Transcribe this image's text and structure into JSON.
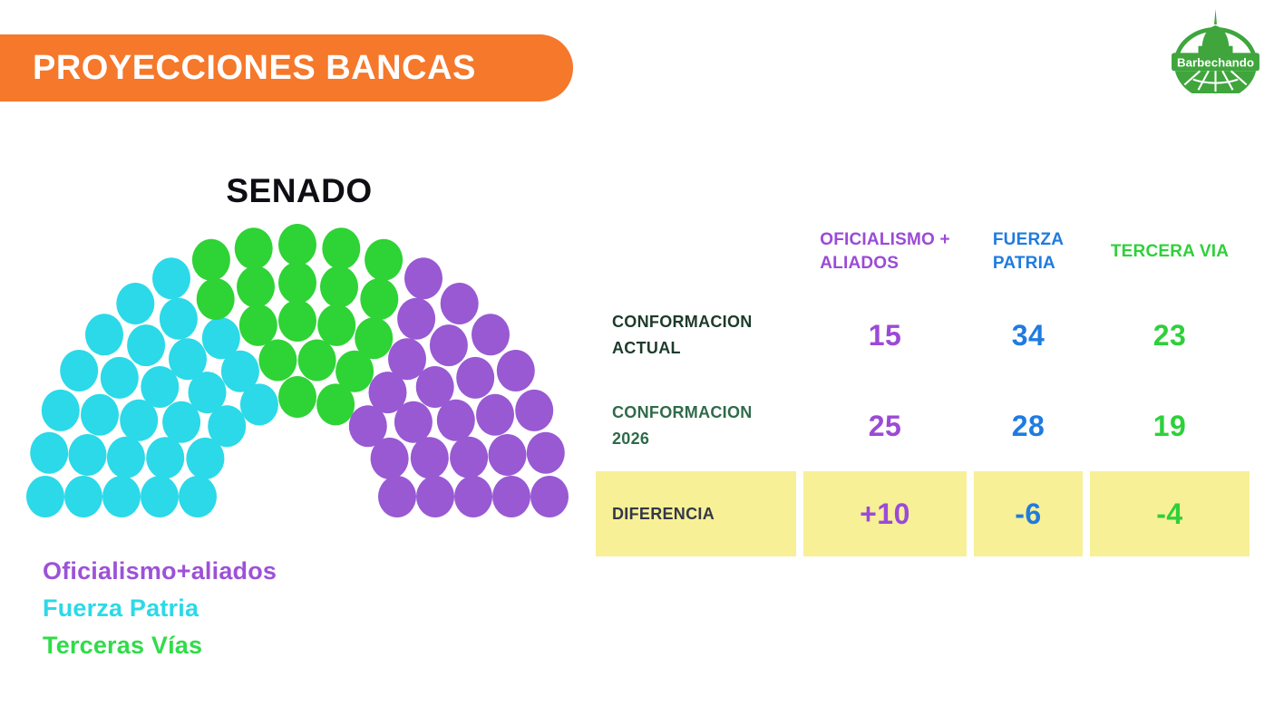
{
  "page": {
    "background": "#ffffff"
  },
  "header": {
    "title": "PROYECCIONES BANCAS",
    "banner_color": "#F5782B",
    "text_color": "#ffffff"
  },
  "logo": {
    "name": "Barbechando",
    "color": "#3FA53C"
  },
  "senate": {
    "title": "SENADO",
    "legend": [
      {
        "label": "Oficialismo+aliados",
        "color": "#9C52D8"
      },
      {
        "label": "Fuerza Patria",
        "color": "#2BD9E8"
      },
      {
        "label": "Terceras Vías",
        "color": "#30DC49"
      }
    ]
  },
  "chart_data": {
    "type": "parliament",
    "title": "SENADO",
    "total_seats": 72,
    "rows": [
      9,
      12,
      15,
      17,
      19
    ],
    "parties": [
      {
        "name": "Fuerza Patria",
        "seats": 28,
        "color": "#2BD9E8"
      },
      {
        "name": "Terceras Vías",
        "seats": 19,
        "color": "#2ED335"
      },
      {
        "name": "Oficialismo+aliados",
        "seats": 25,
        "color": "#9859D3"
      }
    ]
  },
  "table": {
    "columns": [
      {
        "line1": "OFICIALISMO +",
        "line2": "ALIADOS",
        "color": "#9B4AD6"
      },
      {
        "line1": "FUERZA",
        "line2": "PATRIA",
        "color": "#1F7BE0"
      },
      {
        "line1": "TERCERA VIA",
        "line2": "",
        "color": "#2FD03A"
      }
    ],
    "rows": [
      {
        "line1": "CONFORMACION",
        "line2": "ACTUAL",
        "label_color": "#1D3B2A",
        "values": [
          "15",
          "34",
          "23"
        ],
        "highlight": false
      },
      {
        "line1": "CONFORMACION",
        "line2": "2026",
        "label_color": "#2F6B4A",
        "values": [
          "25",
          "28",
          "19"
        ],
        "highlight": false
      },
      {
        "line1": "DIFERENCIA",
        "line2": "",
        "label_color": "#333847",
        "values": [
          "+10",
          "-6",
          "-4"
        ],
        "highlight": true
      }
    ],
    "highlight_color": "#F7F096"
  }
}
